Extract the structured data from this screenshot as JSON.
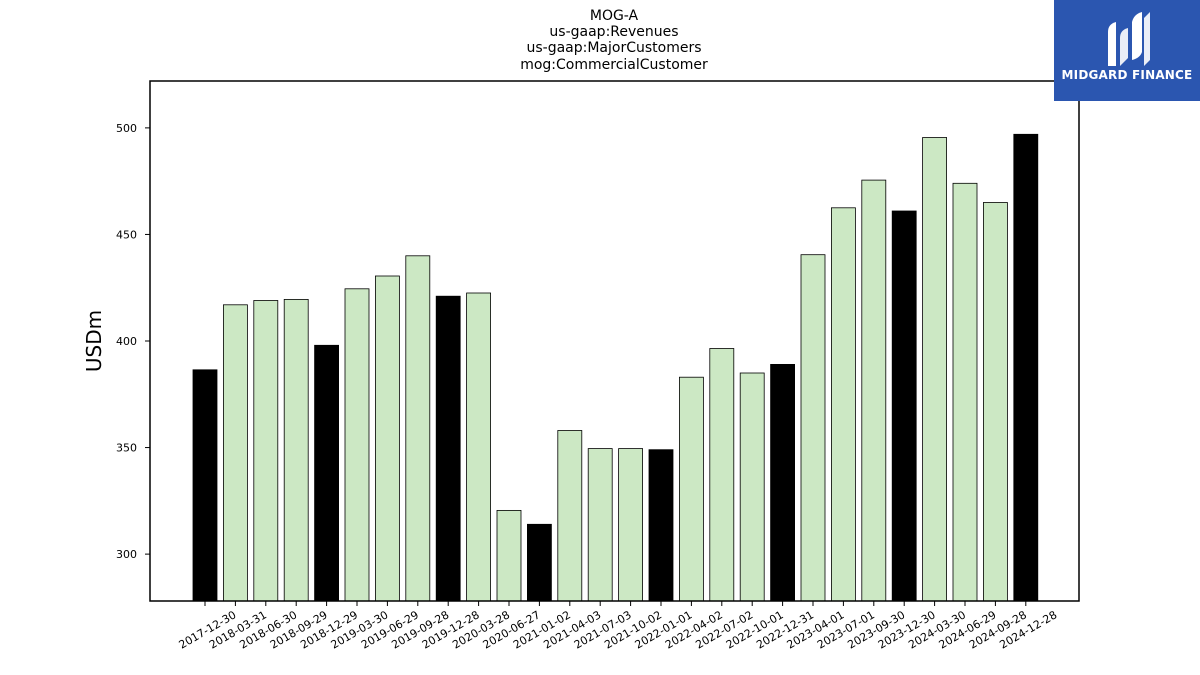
{
  "chart_data": {
    "type": "bar",
    "title": [
      "MOG-A",
      "us-gaap:Revenues",
      "us-gaap:MajorCustomers",
      "mog:CommercialCustomer"
    ],
    "xlabel": "",
    "ylabel": "USDm",
    "ylim": [
      278,
      522
    ],
    "yticks": [
      300,
      350,
      400,
      450,
      500
    ],
    "grid": false,
    "colors": {
      "quarter": "#cce8c4",
      "year_end": "#000000",
      "edge": "#000000"
    },
    "categories": [
      "2017-12-30",
      "2018-03-31",
      "2018-06-30",
      "2018-09-29",
      "2018-12-29",
      "2019-03-30",
      "2019-06-29",
      "2019-09-28",
      "2019-12-28",
      "2020-03-28",
      "2020-06-27",
      "2021-01-02",
      "2021-04-03",
      "2021-07-03",
      "2021-10-02",
      "2022-01-01",
      "2022-04-02",
      "2022-07-02",
      "2022-10-01",
      "2022-12-31",
      "2023-04-01",
      "2023-07-01",
      "2023-09-30",
      "2023-12-30",
      "2024-03-30",
      "2024-06-29",
      "2024-09-28",
      "2024-12-28"
    ],
    "values": [
      386.5,
      417,
      419,
      419.5,
      398,
      424.5,
      430.5,
      440,
      421,
      422.5,
      320.5,
      314,
      358,
      349.5,
      349.5,
      349,
      383,
      396.5,
      385,
      389,
      440.5,
      462.5,
      475.5,
      461,
      495.5,
      474,
      465,
      497
    ],
    "highlight": [
      true,
      false,
      false,
      false,
      true,
      false,
      false,
      false,
      true,
      false,
      false,
      true,
      false,
      false,
      false,
      true,
      false,
      false,
      false,
      true,
      false,
      false,
      false,
      true,
      false,
      false,
      false,
      true
    ]
  },
  "logo": {
    "text": "MIDGARD FINANCE",
    "icon": "midgard-logo-icon"
  }
}
